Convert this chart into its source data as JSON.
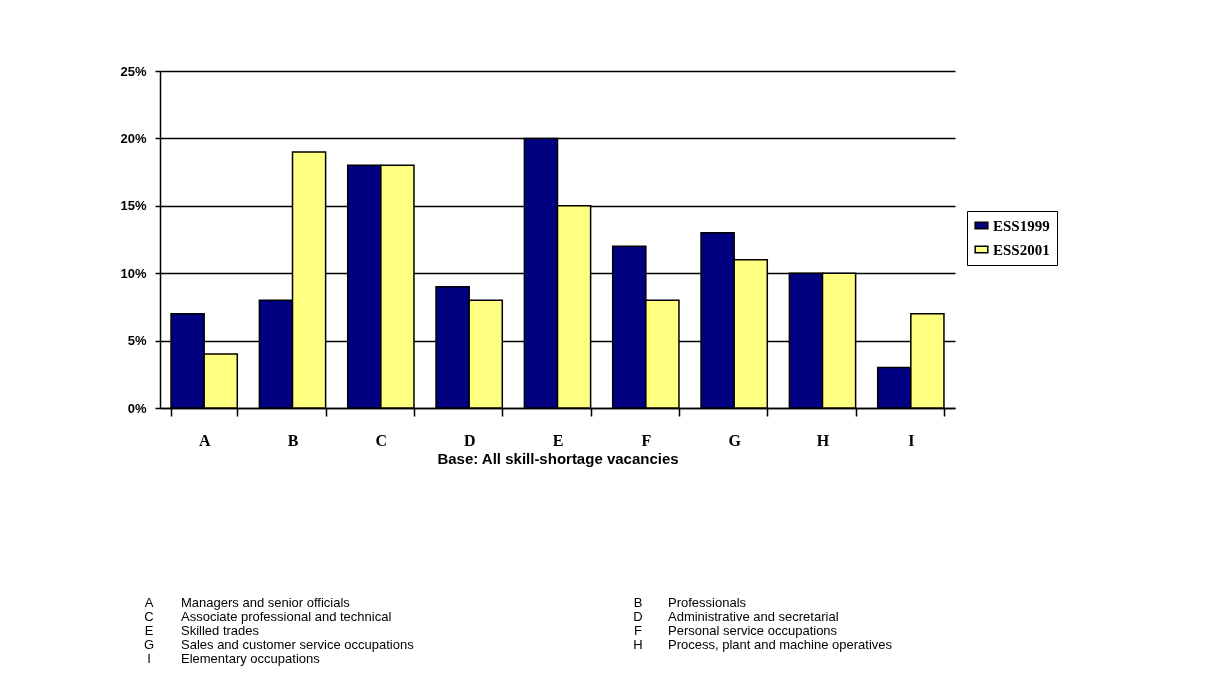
{
  "chart_data": {
    "type": "bar",
    "xlabel": "Base: All skill-shortage vacancies",
    "categories": [
      "A",
      "B",
      "C",
      "D",
      "E",
      "F",
      "G",
      "H",
      "I"
    ],
    "series": [
      {
        "name": "ESS1999",
        "color": "#000080",
        "values": [
          7,
          8,
          18,
          9,
          20,
          12,
          13,
          10,
          3
        ]
      },
      {
        "name": "ESS2001",
        "color": "#ffff80",
        "values": [
          4,
          19,
          18,
          8,
          15,
          8,
          11,
          10,
          7
        ]
      }
    ],
    "ylim": [
      0,
      25
    ],
    "yticks": [
      {
        "value": 0,
        "label": "0%"
      },
      {
        "value": 5,
        "label": "5%"
      },
      {
        "value": 10,
        "label": "10%"
      },
      {
        "value": 15,
        "label": "15%"
      },
      {
        "value": 20,
        "label": "20%"
      },
      {
        "value": 25,
        "label": "25%"
      }
    ],
    "grid": "y",
    "legend": "right",
    "annotations": [
      "A Managers and senior officials",
      "B Professionals",
      "C Associate professional and technical",
      "D Administrative and secretarial",
      "E Skilled trades",
      "F Personal service occupations",
      "G Sales and customer service occupations",
      "H Process, plant and machine operatives",
      "I Elementary occupations"
    ]
  }
}
